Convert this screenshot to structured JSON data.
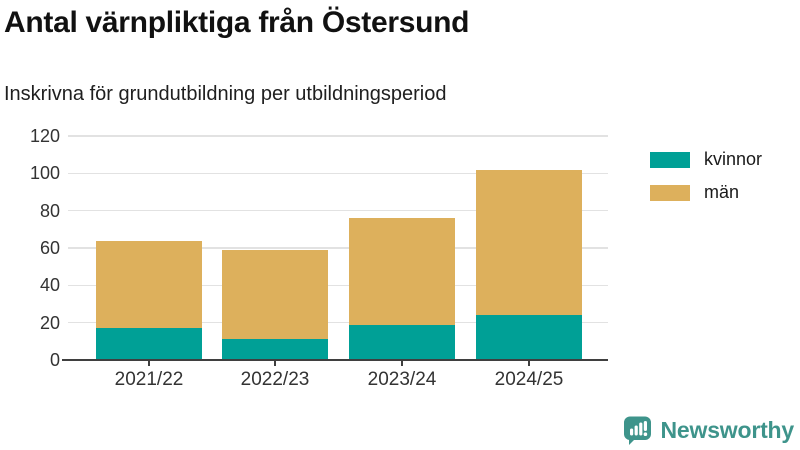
{
  "title": "Antal värnpliktiga från Östersund",
  "subtitle": "Inskrivna för grundutbildning per utbildningsperiod",
  "chart_data": {
    "type": "bar",
    "stacked": true,
    "title": "Antal värnpliktiga från Östersund",
    "subtitle": "Inskrivna för grundutbildning per utbildningsperiod",
    "categories": [
      "2021/22",
      "2022/23",
      "2023/24",
      "2024/25"
    ],
    "series": [
      {
        "name": "kvinnor",
        "color": "#00A096",
        "values": [
          17,
          11,
          19,
          24
        ]
      },
      {
        "name": "män",
        "color": "#DDB05C",
        "values": [
          47,
          48,
          57,
          78
        ]
      }
    ],
    "stack_totals": [
      64,
      59,
      76,
      102
    ],
    "xlabel": "",
    "ylabel": "",
    "ylim": [
      0,
      120
    ],
    "yticks": [
      0,
      20,
      40,
      60,
      80,
      100,
      120
    ],
    "grid": true,
    "legend_position": "right-top"
  },
  "colors": {
    "kvinnor": "#00A096",
    "man": "#DDB05C",
    "gridline": "#e2e2e2",
    "axis": "#3f3f3f",
    "brand": "#3E948B"
  },
  "branding": {
    "logo_text": "Newsworthy",
    "logo_icon": "newsworthy-speech-bubble-chart-icon"
  }
}
